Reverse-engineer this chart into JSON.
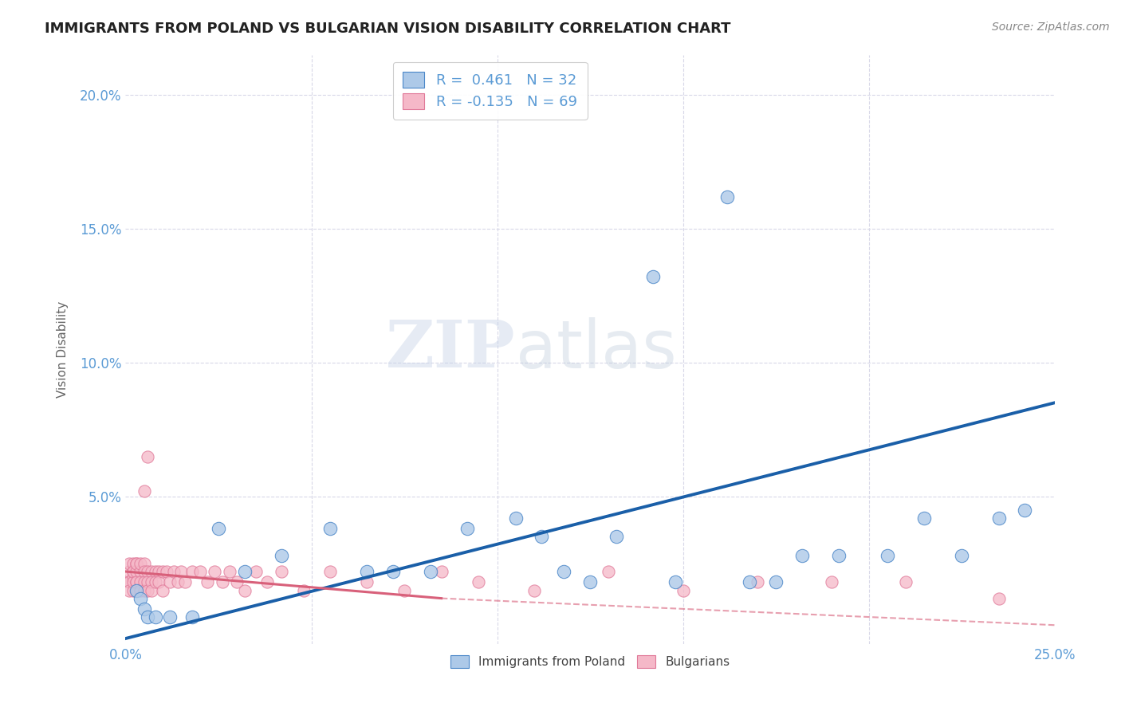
{
  "title": "IMMIGRANTS FROM POLAND VS BULGARIAN VISION DISABILITY CORRELATION CHART",
  "source": "Source: ZipAtlas.com",
  "ylabel": "Vision Disability",
  "xlabel": "",
  "xlim": [
    0.0,
    0.25
  ],
  "ylim": [
    -0.005,
    0.215
  ],
  "xticks": [
    0.0,
    0.05,
    0.1,
    0.15,
    0.2,
    0.25
  ],
  "yticks": [
    0.0,
    0.05,
    0.1,
    0.15,
    0.2
  ],
  "ytick_labels": [
    "",
    "5.0%",
    "10.0%",
    "15.0%",
    "20.0%"
  ],
  "xtick_labels": [
    "0.0%",
    "",
    "",
    "",
    "",
    "25.0%"
  ],
  "r_poland": 0.461,
  "n_poland": 32,
  "r_bulgarian": -0.135,
  "n_bulgarian": 69,
  "poland_color": "#adc9e8",
  "bulgarian_color": "#f5b8c8",
  "poland_edge_color": "#4a86c8",
  "bulgarian_edge_color": "#e07898",
  "poland_line_color": "#1a5fa8",
  "bulgarian_line_color": "#d8607a",
  "poland_scatter_x": [
    0.003,
    0.004,
    0.005,
    0.006,
    0.008,
    0.012,
    0.018,
    0.025,
    0.032,
    0.042,
    0.055,
    0.065,
    0.072,
    0.082,
    0.092,
    0.105,
    0.112,
    0.118,
    0.125,
    0.132,
    0.142,
    0.148,
    0.162,
    0.168,
    0.175,
    0.182,
    0.192,
    0.205,
    0.215,
    0.225,
    0.235,
    0.242
  ],
  "poland_scatter_y": [
    0.015,
    0.012,
    0.008,
    0.005,
    0.005,
    0.005,
    0.005,
    0.038,
    0.022,
    0.028,
    0.038,
    0.022,
    0.022,
    0.022,
    0.038,
    0.042,
    0.035,
    0.022,
    0.018,
    0.035,
    0.132,
    0.018,
    0.162,
    0.018,
    0.018,
    0.028,
    0.028,
    0.028,
    0.042,
    0.028,
    0.042,
    0.045
  ],
  "bulgarian_scatter_x": [
    0.001,
    0.001,
    0.001,
    0.001,
    0.001,
    0.002,
    0.002,
    0.002,
    0.002,
    0.002,
    0.002,
    0.003,
    0.003,
    0.003,
    0.003,
    0.003,
    0.003,
    0.004,
    0.004,
    0.004,
    0.004,
    0.005,
    0.005,
    0.005,
    0.005,
    0.005,
    0.006,
    0.006,
    0.006,
    0.006,
    0.007,
    0.007,
    0.007,
    0.008,
    0.008,
    0.009,
    0.009,
    0.01,
    0.01,
    0.011,
    0.012,
    0.013,
    0.014,
    0.015,
    0.016,
    0.018,
    0.02,
    0.022,
    0.024,
    0.026,
    0.028,
    0.03,
    0.032,
    0.035,
    0.038,
    0.042,
    0.048,
    0.055,
    0.065,
    0.075,
    0.085,
    0.095,
    0.11,
    0.13,
    0.15,
    0.17,
    0.19,
    0.21,
    0.235
  ],
  "bulgarian_scatter_y": [
    0.018,
    0.022,
    0.025,
    0.018,
    0.015,
    0.022,
    0.025,
    0.015,
    0.02,
    0.018,
    0.022,
    0.025,
    0.018,
    0.015,
    0.022,
    0.025,
    0.018,
    0.022,
    0.018,
    0.025,
    0.015,
    0.025,
    0.022,
    0.018,
    0.015,
    0.052,
    0.065,
    0.022,
    0.018,
    0.015,
    0.022,
    0.018,
    0.015,
    0.022,
    0.018,
    0.022,
    0.018,
    0.022,
    0.015,
    0.022,
    0.018,
    0.022,
    0.018,
    0.022,
    0.018,
    0.022,
    0.022,
    0.018,
    0.022,
    0.018,
    0.022,
    0.018,
    0.015,
    0.022,
    0.018,
    0.022,
    0.015,
    0.022,
    0.018,
    0.015,
    0.022,
    0.018,
    0.015,
    0.022,
    0.015,
    0.018,
    0.018,
    0.018,
    0.012
  ],
  "watermark_zip": "ZIP",
  "watermark_atlas": "atlas",
  "background_color": "#ffffff",
  "grid_color": "#d8d8e8",
  "title_color": "#222222",
  "axis_label_color": "#5b9bd5",
  "legend_r_color": "#5b9bd5",
  "trendline_poland_x0": 0.0,
  "trendline_poland_y0": -0.003,
  "trendline_poland_x1": 0.25,
  "trendline_poland_y1": 0.085,
  "trendline_bul_solid_x0": 0.0,
  "trendline_bul_solid_y0": 0.022,
  "trendline_bul_solid_x1": 0.085,
  "trendline_bul_solid_y1": 0.012,
  "trendline_bul_dash_x0": 0.085,
  "trendline_bul_dash_y0": 0.012,
  "trendline_bul_dash_x1": 0.25,
  "trendline_bul_dash_y1": 0.002
}
